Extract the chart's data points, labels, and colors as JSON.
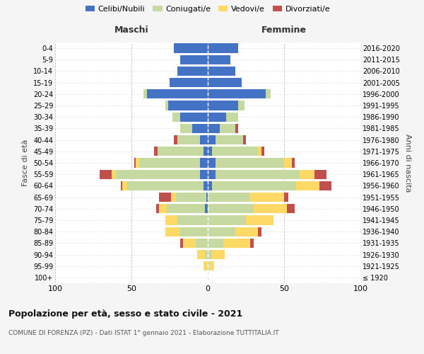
{
  "age_groups": [
    "100+",
    "95-99",
    "90-94",
    "85-89",
    "80-84",
    "75-79",
    "70-74",
    "65-69",
    "60-64",
    "55-59",
    "50-54",
    "45-49",
    "40-44",
    "35-39",
    "30-34",
    "25-29",
    "20-24",
    "15-19",
    "10-14",
    "5-9",
    "0-4"
  ],
  "birth_years": [
    "≤ 1920",
    "1921-1925",
    "1926-1930",
    "1931-1935",
    "1936-1940",
    "1941-1945",
    "1946-1950",
    "1951-1955",
    "1956-1960",
    "1961-1965",
    "1966-1970",
    "1971-1975",
    "1976-1980",
    "1981-1985",
    "1986-1990",
    "1991-1995",
    "1996-2000",
    "2001-2005",
    "2006-2010",
    "2011-2015",
    "2016-2020"
  ],
  "colors": {
    "celibi": "#4472C4",
    "coniugati": "#C5D9A0",
    "vedovi": "#FFD966",
    "divorziati": "#C0504D"
  },
  "maschi": {
    "celibi": [
      0,
      0,
      0,
      0,
      0,
      0,
      2,
      1,
      3,
      5,
      5,
      3,
      5,
      10,
      18,
      26,
      40,
      25,
      20,
      18,
      22
    ],
    "coniugati": [
      0,
      0,
      2,
      8,
      18,
      20,
      25,
      20,
      50,
      55,
      40,
      30,
      15,
      8,
      5,
      2,
      2,
      0,
      0,
      0,
      0
    ],
    "vedovi": [
      0,
      3,
      5,
      8,
      10,
      8,
      5,
      3,
      3,
      3,
      2,
      0,
      0,
      0,
      0,
      0,
      0,
      0,
      0,
      0,
      0
    ],
    "divorziati": [
      0,
      0,
      0,
      2,
      0,
      0,
      2,
      8,
      1,
      8,
      1,
      2,
      2,
      0,
      0,
      0,
      0,
      0,
      0,
      0,
      0
    ]
  },
  "femmine": {
    "celibi": [
      0,
      0,
      0,
      0,
      0,
      0,
      0,
      0,
      3,
      5,
      5,
      3,
      5,
      8,
      12,
      20,
      38,
      22,
      18,
      15,
      20
    ],
    "coniugati": [
      0,
      1,
      3,
      10,
      18,
      25,
      30,
      28,
      55,
      55,
      45,
      30,
      18,
      10,
      8,
      4,
      3,
      0,
      0,
      0,
      0
    ],
    "vedovi": [
      0,
      3,
      8,
      18,
      15,
      18,
      22,
      22,
      15,
      10,
      5,
      2,
      0,
      0,
      0,
      0,
      0,
      0,
      0,
      0,
      0
    ],
    "divorziati": [
      0,
      0,
      0,
      2,
      2,
      0,
      5,
      3,
      8,
      8,
      2,
      2,
      2,
      2,
      0,
      0,
      0,
      0,
      0,
      0,
      0
    ]
  },
  "title": "Popolazione per età, sesso e stato civile - 2021",
  "subtitle": "COMUNE DI FORENZA (PZ) - Dati ISTAT 1° gennaio 2021 - Elaborazione TUTTITALIA.IT",
  "xlabel_left": "Maschi",
  "xlabel_right": "Femmine",
  "ylabel_left": "Fasce di età",
  "ylabel_right": "Anni di nascita",
  "xlim": 100,
  "background_color": "#f5f5f5",
  "plot_background": "#ffffff",
  "legend_labels": [
    "Celibi/Nubili",
    "Coniugati/e",
    "Vedovi/e",
    "Divorziati/e"
  ]
}
